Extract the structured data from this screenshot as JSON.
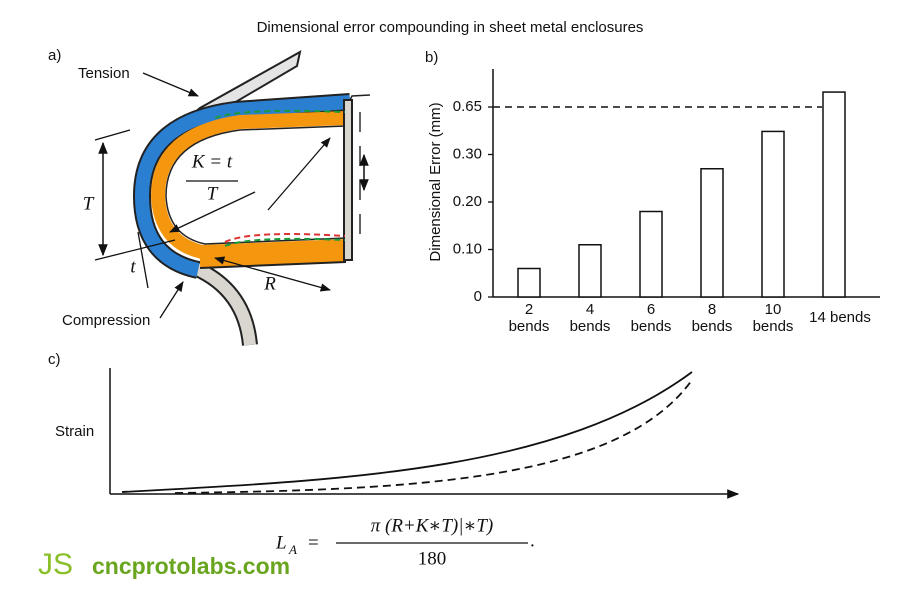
{
  "title": "Dimensional error compounding in sheet metal enclosures",
  "panel_a": {
    "label": "a)",
    "tension": "Tension",
    "compression": "Compression",
    "k_numerator": "K = t",
    "k_denominator": "T",
    "thickness_T": "T",
    "thickness_t": "t",
    "radius": "R"
  },
  "chart_data": {
    "type": "bar",
    "label": "b)",
    "y_label": "Dimensional Error (mm)",
    "categories": [
      "2\nbends",
      "4\nbends",
      "6\nbends",
      "8\nbends",
      "10\nbends",
      "14 bends"
    ],
    "values": [
      0.06,
      0.11,
      0.18,
      0.27,
      0.47,
      0.76
    ],
    "color": "#ffffff",
    "ylim": [
      0,
      0.93
    ],
    "yticks": [
      0,
      {
        "value": 0.1,
        "label": "0.10"
      },
      {
        "value": 0.2,
        "label": "0.20"
      },
      {
        "value": 0.3,
        "label": "0.30"
      },
      0.65
    ],
    "reference_line": 0.65
  },
  "panel_c": {
    "label": "c)",
    "y_label": "Strain"
  },
  "formula": {
    "lhs": "L",
    "lhs_sub": "A",
    "equals": "=",
    "numerator": "π (R+K∗T)|∗T)",
    "denominator": "180",
    "end": "."
  },
  "logo": {
    "mark": "JS",
    "text": "cncprotolabs.com"
  }
}
